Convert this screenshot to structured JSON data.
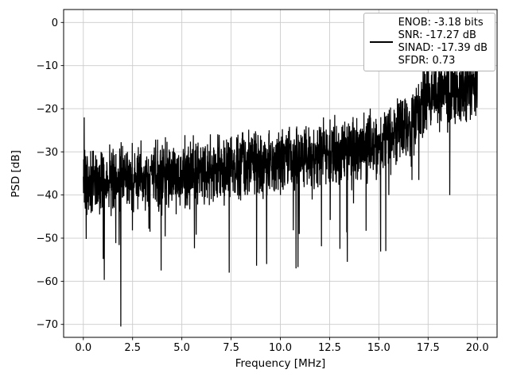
{
  "chart_data": {
    "type": "line",
    "title": "",
    "xlabel": "Frequency [MHz]",
    "ylabel": "PSD [dB]",
    "xlim": [
      -1,
      21
    ],
    "ylim": [
      -73,
      3
    ],
    "grid": true,
    "grid_color": "#cccccc",
    "xticks": [
      0.0,
      2.5,
      5.0,
      7.5,
      10.0,
      12.5,
      15.0,
      17.5,
      20.0
    ],
    "xtick_labels": [
      "0.0",
      "2.5",
      "5.0",
      "7.5",
      "10.0",
      "12.5",
      "15.0",
      "17.5",
      "20.0"
    ],
    "yticks": [
      0,
      -10,
      -20,
      -30,
      -40,
      -50,
      -60,
      -70
    ],
    "ytick_labels": [
      "0",
      "−10",
      "−20",
      "−30",
      "−40",
      "−50",
      "−60",
      "−70"
    ],
    "legend": {
      "position": "upper right",
      "line_color": "#000000",
      "lines": [
        "ENOB: -3.18 bits",
        "SNR: -17.27 dB",
        "SINAD: -17.39 dB",
        "SFDR: 0.73"
      ]
    },
    "series": [
      {
        "name": "psd",
        "color": "#000000",
        "line_width": 1.25,
        "synthesis": {
          "seed": 20,
          "points": 2200,
          "x_start": 0,
          "x_end": 20,
          "trend_x": [
            0,
            2.5,
            5,
            7.5,
            10,
            12.5,
            15,
            16,
            16.8,
            17.5,
            18.2,
            19,
            19.6,
            20
          ],
          "trend_y": [
            -37,
            -36,
            -35,
            -33.5,
            -32,
            -30.5,
            -28,
            -26,
            -23,
            -17,
            -15,
            -16,
            -15,
            -13
          ],
          "noise_spread_db": 9,
          "dip_probability": 0.022,
          "dip_max_db": 22,
          "forced_points": [
            [
              0.05,
              -22
            ],
            [
              1.9,
              -70.5
            ],
            [
              3.95,
              -57.5
            ],
            [
              7.4,
              -58
            ],
            [
              9.3,
              -56
            ],
            [
              10.8,
              -57
            ],
            [
              13.4,
              -55.5
            ],
            [
              15.35,
              -53
            ],
            [
              18.6,
              -40
            ]
          ]
        }
      }
    ]
  }
}
